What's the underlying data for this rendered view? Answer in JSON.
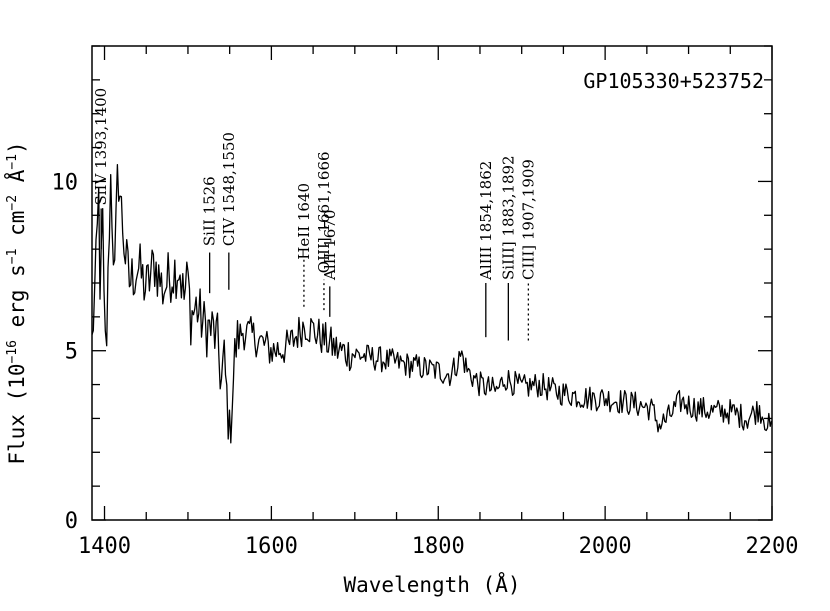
{
  "chart_data": {
    "type": "line",
    "object_name": "GP105330+523752",
    "xlabel": "Wavelength (Å)",
    "ylabel": {
      "prefix": "Flux (10",
      "exp1": "−16",
      "mid1": " erg s",
      "exp2": "−1",
      "mid2": " cm",
      "exp3": "−2",
      "mid3": " Å",
      "exp4": "−1",
      "suffix": ")"
    },
    "xlim": [
      1385,
      2200
    ],
    "ylim": [
      0,
      14
    ],
    "xticks": [
      1400,
      1600,
      1800,
      2000,
      2200
    ],
    "xtick_labels": [
      "1400",
      "1600",
      "1800",
      "2000",
      "2200"
    ],
    "yticks": [
      0,
      5,
      10
    ],
    "ytick_labels": [
      "0",
      "5",
      "10"
    ],
    "x_minor_step": 50,
    "y_minor_step": 1,
    "spectrum_anchors": [
      [
        1385,
        5.2
      ],
      [
        1390,
        7.5
      ],
      [
        1393,
        9.5
      ],
      [
        1395,
        6.5
      ],
      [
        1398,
        9.0
      ],
      [
        1400,
        5.0
      ],
      [
        1403,
        5.5
      ],
      [
        1407,
        10.3
      ],
      [
        1410,
        8.5
      ],
      [
        1412,
        7.0
      ],
      [
        1416,
        10.4
      ],
      [
        1420,
        9.2
      ],
      [
        1425,
        7.8
      ],
      [
        1430,
        7.0
      ],
      [
        1440,
        7.5
      ],
      [
        1450,
        6.8
      ],
      [
        1460,
        7.6
      ],
      [
        1470,
        6.8
      ],
      [
        1480,
        7.3
      ],
      [
        1490,
        7.5
      ],
      [
        1495,
        6.5
      ],
      [
        1500,
        7.2
      ],
      [
        1503,
        6.0
      ],
      [
        1510,
        6.3
      ],
      [
        1520,
        5.7
      ],
      [
        1530,
        5.6
      ],
      [
        1536,
        5.2
      ],
      [
        1540,
        4.0
      ],
      [
        1543,
        4.8
      ],
      [
        1548,
        3.2
      ],
      [
        1550,
        2.4
      ],
      [
        1553,
        3.7
      ],
      [
        1557,
        5.1
      ],
      [
        1565,
        5.6
      ],
      [
        1580,
        5.4
      ],
      [
        1600,
        5.0
      ],
      [
        1620,
        5.1
      ],
      [
        1640,
        5.8
      ],
      [
        1660,
        5.4
      ],
      [
        1680,
        5.0
      ],
      [
        1700,
        4.9
      ],
      [
        1720,
        4.8
      ],
      [
        1740,
        4.7
      ],
      [
        1760,
        4.6
      ],
      [
        1780,
        4.5
      ],
      [
        1800,
        4.4
      ],
      [
        1815,
        4.3
      ],
      [
        1828,
        4.9
      ],
      [
        1835,
        4.4
      ],
      [
        1850,
        4.0
      ],
      [
        1870,
        3.8
      ],
      [
        1880,
        4.2
      ],
      [
        1900,
        3.9
      ],
      [
        1920,
        4.0
      ],
      [
        1940,
        3.8
      ],
      [
        1960,
        3.7
      ],
      [
        1980,
        3.6
      ],
      [
        2000,
        3.6
      ],
      [
        2020,
        3.5
      ],
      [
        2040,
        3.4
      ],
      [
        2055,
        3.3
      ],
      [
        2065,
        2.8
      ],
      [
        2075,
        3.0
      ],
      [
        2090,
        3.5
      ],
      [
        2110,
        3.3
      ],
      [
        2130,
        3.2
      ],
      [
        2150,
        3.2
      ],
      [
        2170,
        3.0
      ],
      [
        2185,
        3.3
      ],
      [
        2200,
        2.6
      ]
    ],
    "noise_amplitude": 0.55,
    "lines": [
      {
        "label": "SiIV 1393,1400",
        "wave": 1396,
        "tick_bottom": 8.0,
        "tick_top": 9.2,
        "dotted": false,
        "text_bottom": 9.2
      },
      {
        "label": "SiII 1526",
        "wave": 1526,
        "tick_bottom": 6.7,
        "tick_top": 7.9,
        "dotted": false,
        "text_bottom": 8.0
      },
      {
        "label": "CIV 1548,1550",
        "wave": 1549,
        "tick_bottom": 6.8,
        "tick_top": 7.9,
        "dotted": false,
        "text_bottom": 8.0
      },
      {
        "label": "HeII 1640",
        "wave": 1639,
        "tick_bottom": 6.3,
        "tick_top": 7.7,
        "dotted": true,
        "text_bottom": 7.6
      },
      {
        "label": "OIII] 1661,1666",
        "wave": 1663,
        "tick_bottom": 6.2,
        "tick_top": 7.1,
        "dotted": true,
        "text_bottom": 7.2
      },
      {
        "label": "AlII 1670",
        "wave": 1670,
        "tick_bottom": 6.0,
        "tick_top": 6.9,
        "dotted": false,
        "text_bottom": 7.0
      },
      {
        "label": "AlIII 1854,1862",
        "wave": 1857,
        "tick_bottom": 5.4,
        "tick_top": 7.0,
        "dotted": false,
        "text_bottom": 7.0
      },
      {
        "label": "SiIII] 1883,1892",
        "wave": 1884,
        "tick_bottom": 5.3,
        "tick_top": 7.0,
        "dotted": false,
        "text_bottom": 7.0
      },
      {
        "label": "CIII] 1907,1909",
        "wave": 1908,
        "tick_bottom": 5.3,
        "tick_top": 7.0,
        "dotted": true,
        "text_bottom": 7.0
      }
    ]
  }
}
